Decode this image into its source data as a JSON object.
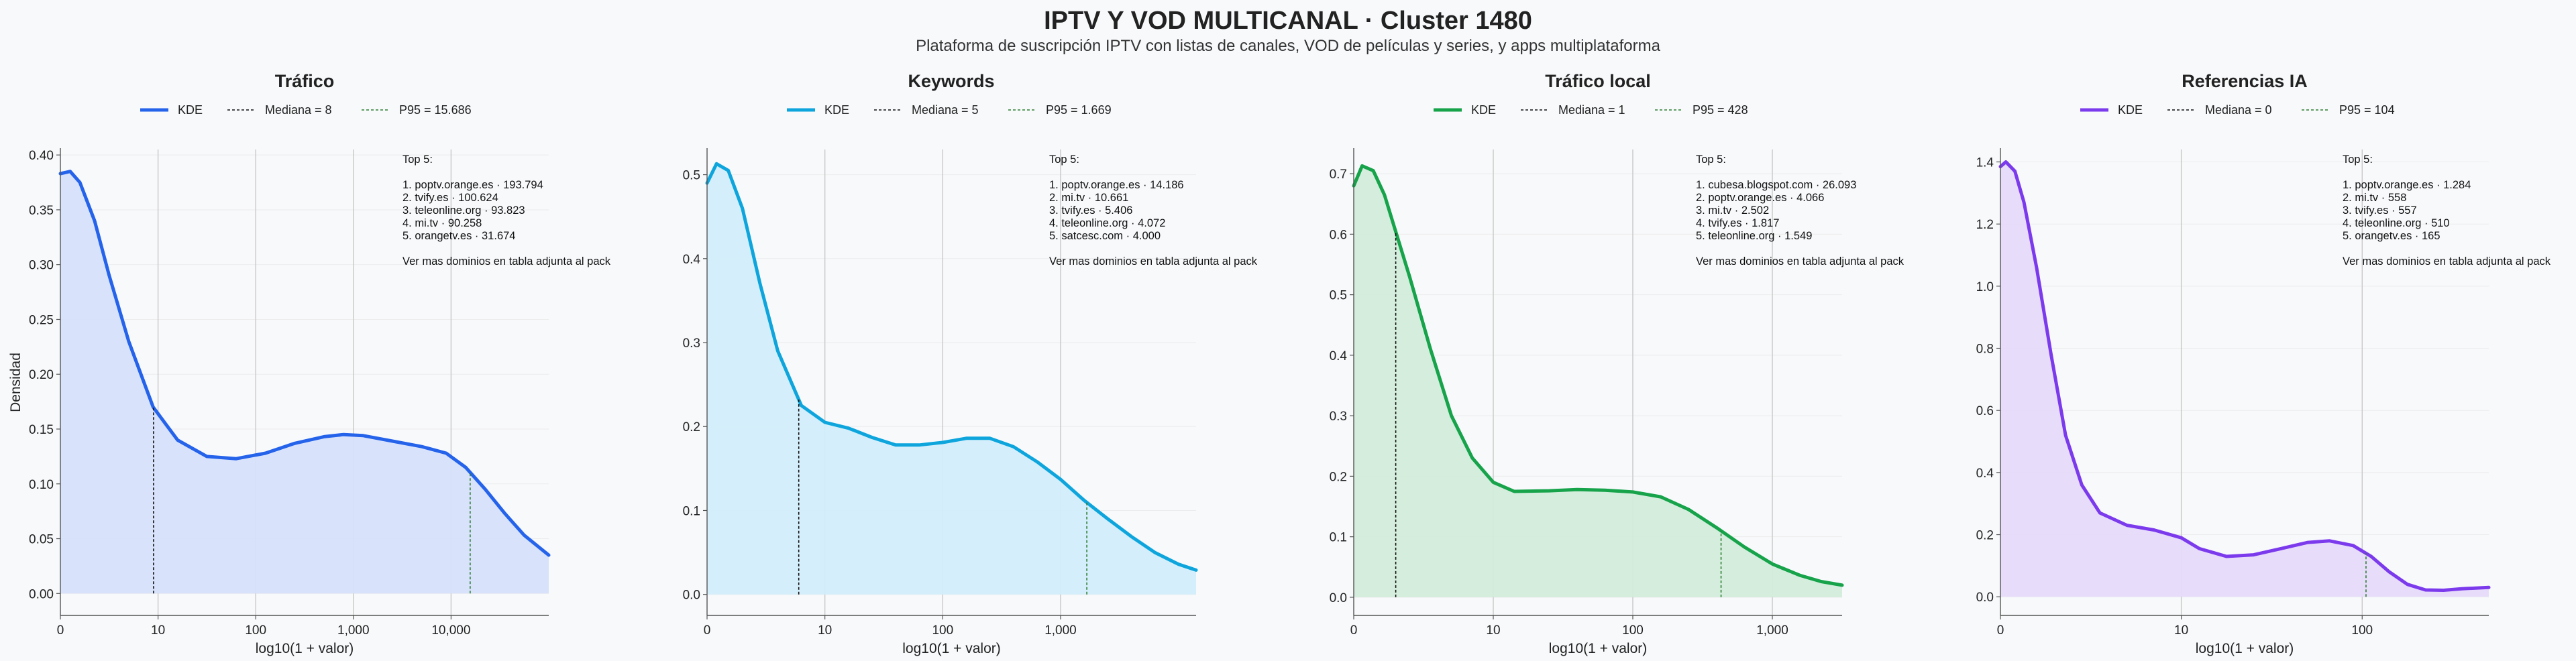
{
  "header": {
    "title": "IPTV Y VOD MULTICANAL · Cluster 1480",
    "subtitle": "Plataforma de suscripción IPTV con listas de canales, VOD de películas y series, y apps multiplataforma"
  },
  "chart_data": [
    {
      "type": "area",
      "title": "Tráfico",
      "xlabel": "log10(1 + valor)",
      "ylabel": "Densidad",
      "xscale": "log10(1+x)",
      "xlim": [
        0,
        5.0
      ],
      "ylim": [
        -0.02,
        0.405
      ],
      "yticks": [
        0.0,
        0.05,
        0.1,
        0.15,
        0.2,
        0.25,
        0.3,
        0.35,
        0.4
      ],
      "ytick_labels": [
        "0.00",
        "0.05",
        "0.10",
        "0.15",
        "0.20",
        "0.25",
        "0.30",
        "0.35",
        "0.40"
      ],
      "xticks": [
        0,
        1,
        2,
        3,
        4
      ],
      "xtick_labels": [
        "0",
        "10",
        "100",
        "1,000",
        "10,000"
      ],
      "color": "#2563eb",
      "fill": "#d6e1fb",
      "kde": {
        "x": [
          0,
          0.1,
          0.2,
          0.35,
          0.5,
          0.7,
          0.95,
          1.2,
          1.5,
          1.8,
          2.1,
          2.4,
          2.7,
          2.9,
          3.1,
          3.4,
          3.7,
          3.95,
          4.15,
          4.35,
          4.55,
          4.75,
          5.0
        ],
        "y": [
          0.383,
          0.385,
          0.375,
          0.34,
          0.29,
          0.23,
          0.17,
          0.14,
          0.125,
          0.123,
          0.128,
          0.137,
          0.143,
          0.145,
          0.144,
          0.139,
          0.134,
          0.128,
          0.115,
          0.095,
          0.073,
          0.053,
          0.035
        ]
      },
      "median": 8,
      "p95": 15686,
      "legend": [
        "KDE",
        "Mediana = 8",
        "P95 = 15.686"
      ],
      "top_label": "Top 5:",
      "top": [
        "1. poptv.orange.es · 193.794",
        "2. tvify.es · 100.624",
        "3. teleonline.org · 93.823",
        "4. mi.tv · 90.258",
        "5. orangetv.es · 31.674"
      ],
      "note": "Ver mas dominios en tabla adjunta al pack"
    },
    {
      "type": "area",
      "title": "Keywords",
      "xlabel": "log10(1 + valor)",
      "ylabel": "",
      "xscale": "log10(1+x)",
      "xlim": [
        0,
        4.15
      ],
      "ylim": [
        -0.025,
        0.53
      ],
      "yticks": [
        0.0,
        0.1,
        0.2,
        0.3,
        0.4,
        0.5
      ],
      "ytick_labels": [
        "0.0",
        "0.1",
        "0.2",
        "0.3",
        "0.4",
        "0.5"
      ],
      "xticks": [
        0,
        1,
        2,
        3
      ],
      "xtick_labels": [
        "0",
        "10",
        "100",
        "1,000"
      ],
      "color": "#0ea5dd",
      "fill": "#d2eefb",
      "kde": {
        "x": [
          0,
          0.08,
          0.18,
          0.3,
          0.45,
          0.6,
          0.8,
          1.0,
          1.2,
          1.4,
          1.6,
          1.8,
          2.0,
          2.2,
          2.4,
          2.6,
          2.8,
          3.0,
          3.2,
          3.4,
          3.6,
          3.8,
          4.0,
          4.15
        ],
        "y": [
          0.49,
          0.513,
          0.505,
          0.46,
          0.37,
          0.29,
          0.225,
          0.205,
          0.198,
          0.187,
          0.178,
          0.178,
          0.181,
          0.186,
          0.186,
          0.176,
          0.158,
          0.137,
          0.112,
          0.09,
          0.069,
          0.05,
          0.036,
          0.029
        ]
      },
      "median": 5,
      "p95": 1669,
      "legend": [
        "KDE",
        "Mediana = 5",
        "P95 = 1.669"
      ],
      "top_label": "Top 5:",
      "top": [
        "1. poptv.orange.es · 14.186",
        "2. mi.tv · 10.661",
        "3. tvify.es · 5.406",
        "4. teleonline.org · 4.072",
        "5. satcesc.com · 4.000"
      ],
      "note": "Ver mas dominios en tabla adjunta al pack"
    },
    {
      "type": "area",
      "title": "Tráfico local",
      "xlabel": "log10(1 + valor)",
      "ylabel": "",
      "xscale": "log10(1+x)",
      "xlim": [
        0,
        3.5
      ],
      "ylim": [
        -0.03,
        0.74
      ],
      "yticks": [
        0.0,
        0.1,
        0.2,
        0.3,
        0.4,
        0.5,
        0.6,
        0.7
      ],
      "ytick_labels": [
        "0.0",
        "0.1",
        "0.2",
        "0.3",
        "0.4",
        "0.5",
        "0.6",
        "0.7"
      ],
      "xticks": [
        0,
        1,
        2,
        3
      ],
      "xtick_labels": [
        "0",
        "10",
        "100",
        "1,000"
      ],
      "color": "#16a34a",
      "fill": "#d2ecdb",
      "kde": {
        "x": [
          0,
          0.06,
          0.14,
          0.22,
          0.3,
          0.4,
          0.55,
          0.7,
          0.85,
          1.0,
          1.15,
          1.4,
          1.6,
          1.8,
          2.0,
          2.2,
          2.4,
          2.6,
          2.8,
          3.0,
          3.2,
          3.35,
          3.5
        ],
        "y": [
          0.68,
          0.713,
          0.705,
          0.665,
          0.605,
          0.53,
          0.41,
          0.3,
          0.23,
          0.19,
          0.175,
          0.176,
          0.178,
          0.177,
          0.174,
          0.166,
          0.145,
          0.115,
          0.083,
          0.055,
          0.036,
          0.026,
          0.02
        ]
      },
      "median": 1,
      "p95": 428,
      "legend": [
        "KDE",
        "Mediana = 1",
        "P95 = 428"
      ],
      "top_label": "Top 5:",
      "top": [
        "1. cubesa.blogspot.com · 26.093",
        "2. poptv.orange.es · 4.066",
        "3. mi.tv · 2.502",
        "4. tvify.es · 1.817",
        "5. teleonline.org · 1.549"
      ],
      "note": "Ver mas dominios en tabla adjunta al pack"
    },
    {
      "type": "area",
      "title": "Referencias IA",
      "xlabel": "log10(1 + valor)",
      "ylabel": "",
      "xscale": "log10(1+x)",
      "xlim": [
        0,
        2.7
      ],
      "ylim": [
        -0.06,
        1.44
      ],
      "yticks": [
        0.0,
        0.2,
        0.4,
        0.6,
        0.8,
        1.0,
        1.2,
        1.4
      ],
      "ytick_labels": [
        "0.0",
        "0.2",
        "0.4",
        "0.6",
        "0.8",
        "1.0",
        "1.2",
        "1.4"
      ],
      "xticks": [
        0,
        1,
        2
      ],
      "xtick_labels": [
        "0",
        "10",
        "100"
      ],
      "color": "#7c3aed",
      "fill": "#e6dbfa",
      "kde": {
        "x": [
          0,
          0.03,
          0.08,
          0.13,
          0.2,
          0.28,
          0.36,
          0.45,
          0.55,
          0.7,
          0.85,
          1.0,
          1.1,
          1.25,
          1.4,
          1.55,
          1.7,
          1.82,
          1.95,
          2.05,
          2.15,
          2.25,
          2.35,
          2.45,
          2.55,
          2.7
        ],
        "y": [
          1.385,
          1.4,
          1.37,
          1.27,
          1.06,
          0.78,
          0.52,
          0.36,
          0.27,
          0.23,
          0.215,
          0.19,
          0.155,
          0.13,
          0.135,
          0.155,
          0.175,
          0.18,
          0.165,
          0.13,
          0.08,
          0.04,
          0.022,
          0.021,
          0.026,
          0.03
        ]
      },
      "median": 0,
      "p95": 104,
      "legend": [
        "KDE",
        "Mediana = 0",
        "P95 = 104"
      ],
      "top_label": "Top 5:",
      "top": [
        "1. poptv.orange.es · 1.284",
        "2. mi.tv · 558",
        "3. tvify.es · 557",
        "4. teleonline.org · 510",
        "5. orangetv.es · 165"
      ],
      "note": "Ver mas dominios en tabla adjunta al pack"
    }
  ],
  "styles": {
    "median_color": "#111111",
    "p95_color": "#2e7d32",
    "grid_color": "#c8c8c8",
    "axis_color": "#555555"
  }
}
